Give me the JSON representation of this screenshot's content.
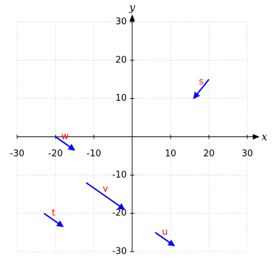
{
  "chart_data": {
    "type": "quiver",
    "x_label": "x",
    "y_label": "y",
    "xlim": [
      -30,
      30
    ],
    "ylim": [
      -30,
      30
    ],
    "xticks": [
      -30,
      -20,
      -10,
      10,
      20,
      30
    ],
    "yticks": [
      -30,
      -20,
      -10,
      10,
      20,
      30
    ],
    "grid": true,
    "color": "#0000ff",
    "label_color": "#ff0000",
    "series": [
      {
        "name": "s",
        "x": [
          20,
          16
        ],
        "y": [
          15,
          10
        ]
      },
      {
        "name": "t",
        "x": [
          -23,
          -18
        ],
        "y": [
          -20,
          -23.5
        ]
      },
      {
        "name": "u",
        "x": [
          6,
          11
        ],
        "y": [
          -25,
          -28.5
        ]
      },
      {
        "name": "v",
        "x": [
          -12,
          -2
        ],
        "y": [
          -12,
          -19
        ]
      },
      {
        "name": "w",
        "x": [
          -20,
          -15
        ],
        "y": [
          0,
          -3.5
        ]
      }
    ]
  }
}
